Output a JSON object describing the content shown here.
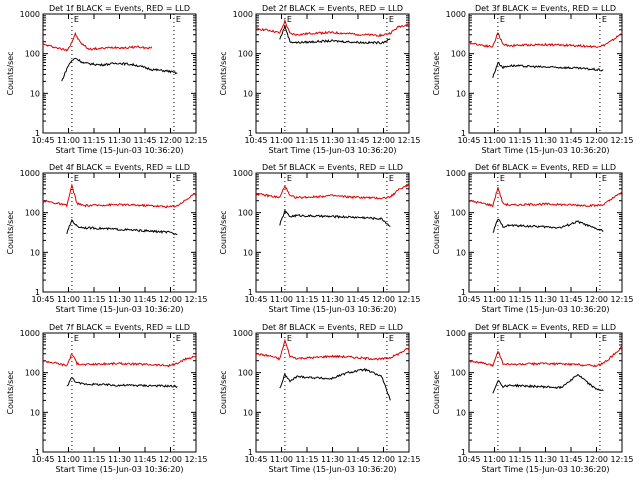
{
  "figure": {
    "background": "#ffffff",
    "events_color": "#000000",
    "lld_color": "#dd0000"
  },
  "chart_data": [
    {
      "type": "line",
      "title": "Det 1f BLACK = Events, RED = LLD",
      "xlabel": "Start Time (15-Jun-03 10:36:20)",
      "ylabel": "Counts/sec",
      "x_ticks": [
        "10:45",
        "11:00",
        "11:15",
        "11:30",
        "11:45",
        "12:00",
        "12:15"
      ],
      "y_ticks": [
        "1",
        "10",
        "100",
        "1000"
      ],
      "x_range_min": [
        36,
        100
      ],
      "y_range": [
        1,
        1000
      ],
      "y_scale": "log",
      "markers": [
        {
          "x_min": 53,
          "label": "E"
        },
        {
          "x_min": 113,
          "label": "E"
        }
      ],
      "series": [
        {
          "label": "LLD",
          "color": "#dd0000",
          "x_min": [
            36,
            42,
            47,
            50,
            52,
            55,
            58,
            63,
            70,
            78,
            85,
            92,
            98,
            100
          ],
          "y": [
            170,
            150,
            130,
            125,
            160,
            310,
            190,
            130,
            135,
            145,
            140,
            150,
            135,
            150
          ]
        },
        {
          "label": "Events",
          "color": "#000000",
          "x_min": [
            47,
            50,
            52,
            55,
            60,
            70,
            80,
            90,
            100,
            110,
            115
          ],
          "y": [
            20,
            42,
            60,
            78,
            58,
            52,
            58,
            52,
            40,
            36,
            32
          ]
        }
      ]
    },
    {
      "type": "line",
      "title": "Det 2f BLACK = Events, RED = LLD",
      "xlabel": "Start Time (15-Jun-03 10:36:20)",
      "ylabel": "Counts/sec",
      "x_ticks": [
        "10:45",
        "11:00",
        "11:15",
        "11:30",
        "11:45",
        "12:00",
        "12:15"
      ],
      "y_ticks": [
        "1",
        "10",
        "100",
        "1000"
      ],
      "y_range": [
        1,
        1000
      ],
      "y_scale": "log",
      "markers": [
        {
          "x_min": 53,
          "label": "E"
        },
        {
          "x_min": 113,
          "label": "E"
        }
      ],
      "series": [
        {
          "label": "LLD",
          "color": "#dd0000",
          "x_min": [
            36,
            45,
            50,
            53,
            56,
            60,
            70,
            80,
            90,
            100,
            110,
            115,
            120,
            126
          ],
          "y": [
            430,
            380,
            330,
            660,
            320,
            300,
            330,
            340,
            320,
            300,
            290,
            330,
            480,
            560
          ]
        },
        {
          "label": "Events",
          "color": "#000000",
          "x_min": [
            50,
            53,
            56,
            60,
            70,
            80,
            90,
            100,
            110,
            115
          ],
          "y": [
            230,
            500,
            200,
            190,
            200,
            210,
            200,
            190,
            190,
            230
          ]
        }
      ]
    },
    {
      "type": "line",
      "title": "Det 3f BLACK = Events, RED = LLD",
      "xlabel": "Start Time (15-Jun-03 10:36:20)",
      "ylabel": "Counts/sec",
      "x_ticks": [
        "10:45",
        "11:00",
        "11:15",
        "11:30",
        "11:45",
        "12:00",
        "12:15"
      ],
      "y_ticks": [
        "1",
        "10",
        "100",
        "1000"
      ],
      "y_range": [
        1,
        1000
      ],
      "y_scale": "log",
      "markers": [
        {
          "x_min": 53,
          "label": "E"
        },
        {
          "x_min": 113,
          "label": "E"
        }
      ],
      "series": [
        {
          "label": "LLD",
          "color": "#dd0000",
          "x_min": [
            36,
            45,
            50,
            53,
            56,
            60,
            70,
            80,
            90,
            100,
            110,
            115,
            120,
            126
          ],
          "y": [
            190,
            160,
            150,
            340,
            170,
            160,
            165,
            170,
            165,
            160,
            150,
            160,
            210,
            330
          ]
        },
        {
          "label": "Events",
          "color": "#000000",
          "x_min": [
            50,
            53,
            56,
            60,
            70,
            80,
            90,
            100,
            110,
            115
          ],
          "y": [
            25,
            60,
            45,
            50,
            48,
            46,
            45,
            43,
            40,
            38
          ]
        }
      ]
    },
    {
      "type": "line",
      "title": "Det 4f BLACK = Events, RED = LLD",
      "xlabel": "Start Time (15-Jun-03 10:36:20)",
      "ylabel": "Counts/sec",
      "x_ticks": [
        "10:45",
        "11:00",
        "11:15",
        "11:30",
        "11:45",
        "12:00",
        "12:15"
      ],
      "y_ticks": [
        "1",
        "10",
        "100",
        "1000"
      ],
      "y_range": [
        1,
        1000
      ],
      "y_scale": "log",
      "markers": [
        {
          "x_min": 53,
          "label": "E"
        },
        {
          "x_min": 113,
          "label": "E"
        }
      ],
      "series": [
        {
          "label": "LLD",
          "color": "#dd0000",
          "x_min": [
            36,
            45,
            50,
            53,
            56,
            60,
            70,
            80,
            90,
            100,
            110,
            115,
            120,
            126
          ],
          "y": [
            200,
            170,
            150,
            480,
            170,
            150,
            155,
            160,
            155,
            150,
            140,
            150,
            210,
            310
          ]
        },
        {
          "label": "Events",
          "color": "#000000",
          "x_min": [
            50,
            53,
            56,
            60,
            70,
            80,
            90,
            100,
            110,
            115
          ],
          "y": [
            30,
            65,
            45,
            42,
            40,
            38,
            36,
            34,
            32,
            28
          ]
        }
      ]
    },
    {
      "type": "line",
      "title": "Det 5f BLACK = Events, RED = LLD",
      "xlabel": "Start Time (15-Jun-03 10:36:20)",
      "ylabel": "Counts/sec",
      "x_ticks": [
        "10:45",
        "11:00",
        "11:15",
        "11:30",
        "11:45",
        "12:00",
        "12:15"
      ],
      "y_ticks": [
        "1",
        "10",
        "100",
        "1000"
      ],
      "y_range": [
        1,
        1000
      ],
      "y_scale": "log",
      "markers": [
        {
          "x_min": 53,
          "label": "E"
        },
        {
          "x_min": 113,
          "label": "E"
        }
      ],
      "series": [
        {
          "label": "LLD",
          "color": "#dd0000",
          "x_min": [
            36,
            45,
            50,
            53,
            56,
            60,
            70,
            80,
            90,
            100,
            110,
            115,
            120,
            126
          ],
          "y": [
            300,
            260,
            240,
            480,
            260,
            240,
            250,
            270,
            250,
            240,
            230,
            250,
            380,
            520
          ]
        },
        {
          "label": "Events",
          "color": "#000000",
          "x_min": [
            50,
            53,
            56,
            60,
            70,
            80,
            90,
            100,
            110,
            115
          ],
          "y": [
            50,
            110,
            80,
            85,
            82,
            80,
            78,
            75,
            70,
            45
          ]
        }
      ]
    },
    {
      "type": "line",
      "title": "Det 6f BLACK = Events, RED = LLD",
      "xlabel": "Start Time (15-Jun-03 10:36:20)",
      "ylabel": "Counts/sec",
      "x_ticks": [
        "10:45",
        "11:00",
        "11:15",
        "11:30",
        "11:45",
        "12:00",
        "12:15"
      ],
      "y_ticks": [
        "1",
        "10",
        "100",
        "1000"
      ],
      "y_range": [
        1,
        1000
      ],
      "y_scale": "log",
      "markers": [
        {
          "x_min": 53,
          "label": "E"
        },
        {
          "x_min": 113,
          "label": "E"
        }
      ],
      "series": [
        {
          "label": "LLD",
          "color": "#dd0000",
          "x_min": [
            36,
            45,
            50,
            53,
            56,
            60,
            70,
            80,
            90,
            100,
            110,
            115,
            120,
            126
          ],
          "y": [
            200,
            170,
            150,
            430,
            170,
            155,
            160,
            165,
            160,
            155,
            150,
            160,
            220,
            330
          ]
        },
        {
          "label": "Events",
          "color": "#000000",
          "x_min": [
            50,
            53,
            56,
            60,
            70,
            80,
            90,
            100,
            110,
            115
          ],
          "y": [
            30,
            70,
            45,
            48,
            46,
            44,
            42,
            60,
            40,
            35
          ]
        }
      ]
    },
    {
      "type": "line",
      "title": "Det 7f BLACK = Events, RED = LLD",
      "xlabel": "Start Time (15-Jun-03 10:36:20)",
      "ylabel": "Counts/sec",
      "x_ticks": [
        "10:45",
        "11:00",
        "11:15",
        "11:30",
        "11:45",
        "12:00",
        "12:15"
      ],
      "y_ticks": [
        "1",
        "10",
        "100",
        "1000"
      ],
      "y_range": [
        1,
        1000
      ],
      "y_scale": "log",
      "markers": [
        {
          "x_min": 53,
          "label": "E"
        },
        {
          "x_min": 113,
          "label": "E"
        }
      ],
      "series": [
        {
          "label": "LLD",
          "color": "#dd0000",
          "x_min": [
            36,
            45,
            50,
            53,
            56,
            60,
            70,
            80,
            90,
            100,
            110,
            115,
            120,
            126
          ],
          "y": [
            200,
            170,
            150,
            300,
            170,
            160,
            165,
            170,
            165,
            160,
            150,
            170,
            220,
            260
          ]
        },
        {
          "label": "Events",
          "color": "#000000",
          "x_min": [
            50,
            53,
            56,
            60,
            70,
            80,
            90,
            100,
            110,
            115
          ],
          "y": [
            45,
            75,
            55,
            52,
            50,
            48,
            48,
            47,
            46,
            45
          ]
        }
      ]
    },
    {
      "type": "line",
      "title": "Det 8f BLACK = Events, RED = LLD",
      "xlabel": "Start Time (15-Jun-03 10:36:20)",
      "ylabel": "Counts/sec",
      "x_ticks": [
        "10:45",
        "11:00",
        "11:15",
        "11:30",
        "11:45",
        "12:00",
        "12:15"
      ],
      "y_ticks": [
        "1",
        "10",
        "100",
        "1000"
      ],
      "y_range": [
        1,
        1000
      ],
      "y_scale": "log",
      "markers": [
        {
          "x_min": 53,
          "label": "E"
        },
        {
          "x_min": 113,
          "label": "E"
        }
      ],
      "series": [
        {
          "label": "LLD",
          "color": "#dd0000",
          "x_min": [
            36,
            45,
            50,
            53,
            56,
            60,
            70,
            80,
            90,
            100,
            110,
            115,
            120,
            126
          ],
          "y": [
            300,
            260,
            220,
            650,
            260,
            230,
            240,
            260,
            250,
            230,
            220,
            240,
            300,
            420
          ]
        },
        {
          "label": "Events",
          "color": "#000000",
          "x_min": [
            50,
            53,
            56,
            60,
            70,
            80,
            90,
            100,
            110,
            115
          ],
          "y": [
            40,
            90,
            60,
            80,
            75,
            70,
            100,
            120,
            80,
            20
          ]
        }
      ]
    },
    {
      "type": "line",
      "title": "Det 9f BLACK = Events, RED = LLD",
      "xlabel": "Start Time (15-Jun-03 10:36:20)",
      "ylabel": "Counts/sec",
      "x_ticks": [
        "10:45",
        "11:00",
        "11:15",
        "11:30",
        "11:45",
        "12:00",
        "12:15"
      ],
      "y_ticks": [
        "1",
        "10",
        "100",
        "1000"
      ],
      "y_range": [
        1,
        1000
      ],
      "y_scale": "log",
      "markers": [
        {
          "x_min": 53,
          "label": "E"
        },
        {
          "x_min": 113,
          "label": "E"
        }
      ],
      "series": [
        {
          "label": "LLD",
          "color": "#dd0000",
          "x_min": [
            36,
            45,
            50,
            53,
            56,
            60,
            70,
            80,
            90,
            100,
            110,
            115,
            120,
            126
          ],
          "y": [
            200,
            170,
            150,
            360,
            170,
            160,
            165,
            170,
            165,
            160,
            150,
            170,
            260,
            450
          ]
        },
        {
          "label": "Events",
          "color": "#000000",
          "x_min": [
            50,
            53,
            56,
            60,
            70,
            80,
            90,
            100,
            110,
            115
          ],
          "y": [
            30,
            65,
            45,
            48,
            46,
            44,
            42,
            90,
            40,
            35
          ]
        }
      ]
    }
  ]
}
